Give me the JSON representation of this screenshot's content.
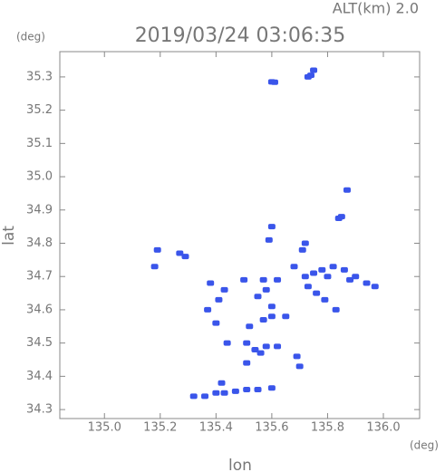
{
  "chart_data": {
    "type": "scatter",
    "title": "2019/03/24 03:06:35",
    "subtitle": "ALT(km) 2.0",
    "x_label": "lon",
    "y_label": "lat",
    "x_unit": "(deg)",
    "y_unit": "(deg)",
    "color": "#3a55ea",
    "x": [
      135.6,
      135.61,
      135.73,
      135.74,
      135.75,
      135.87,
      135.84,
      135.85,
      135.6,
      135.59,
      135.19,
      135.27,
      135.29,
      135.18,
      135.38,
      135.43,
      135.41,
      135.4,
      135.37,
      135.72,
      135.75,
      135.78,
      135.82,
      135.86,
      135.9,
      135.94,
      135.97,
      135.88,
      135.8,
      135.73,
      135.76,
      135.79,
      135.83,
      135.68,
      135.62,
      135.58,
      135.55,
      135.57,
      135.6,
      135.52,
      135.51,
      135.54,
      135.56,
      135.58,
      135.62,
      135.69,
      135.7,
      135.51,
      135.44,
      135.6,
      135.65,
      135.57,
      135.5,
      135.71,
      135.72,
      135.32,
      135.36,
      135.4,
      135.43,
      135.47,
      135.51,
      135.55,
      135.6,
      135.42
    ],
    "y": [
      35.285,
      35.284,
      35.3,
      35.305,
      35.32,
      34.96,
      34.875,
      34.88,
      34.85,
      34.81,
      34.78,
      34.77,
      34.76,
      34.73,
      34.68,
      34.66,
      34.63,
      34.56,
      34.6,
      34.7,
      34.71,
      34.72,
      34.73,
      34.72,
      34.7,
      34.68,
      34.67,
      34.69,
      34.7,
      34.67,
      34.65,
      34.63,
      34.6,
      34.73,
      34.69,
      34.66,
      34.64,
      34.57,
      34.58,
      34.55,
      34.5,
      34.48,
      34.47,
      34.49,
      34.49,
      34.46,
      34.43,
      34.44,
      34.5,
      34.61,
      34.58,
      34.69,
      34.69,
      34.78,
      34.8,
      34.34,
      34.34,
      34.35,
      34.35,
      34.355,
      34.36,
      34.36,
      34.365,
      34.38
    ],
    "xlim": [
      134.84,
      136.13
    ],
    "ylim": [
      34.273,
      35.376
    ],
    "xticks": [
      {
        "value": 135,
        "label": "135.0"
      },
      135.2,
      135.4,
      135.6,
      135.8,
      {
        "value": 136,
        "label": "136.0"
      }
    ],
    "yticks": [
      34.3,
      34.4,
      34.5,
      34.6,
      34.7,
      34.8,
      34.9,
      {
        "value": 35,
        "label": "35.0"
      },
      35.1,
      35.2,
      35.3
    ]
  }
}
